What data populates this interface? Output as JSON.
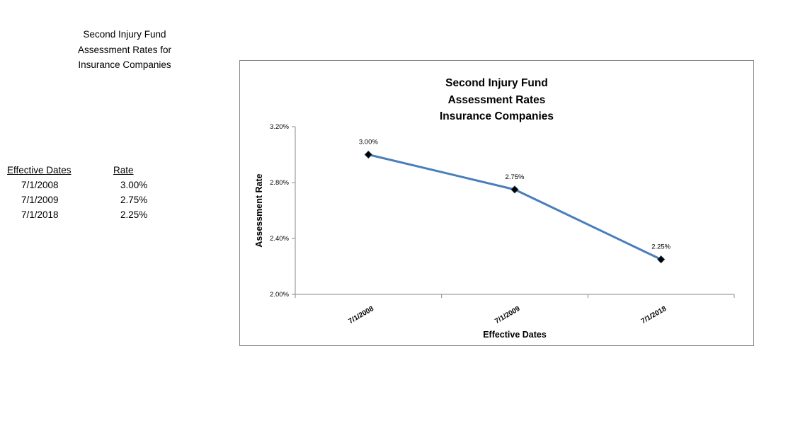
{
  "sheet": {
    "title_lines": [
      "Second Injury Fund",
      "Assessment Rates for",
      "Insurance Companies"
    ],
    "table": {
      "headers": [
        "Effective Dates",
        "Rate"
      ],
      "rows": [
        [
          "7/1/2008",
          "3.00%"
        ],
        [
          "7/1/2009",
          "2.75%"
        ],
        [
          "7/1/2018",
          "2.25%"
        ]
      ]
    }
  },
  "chart_data": {
    "type": "line",
    "title_lines": [
      "Second Injury Fund",
      "Assessment Rates",
      "Insurance Companies"
    ],
    "xlabel": "Effective Dates",
    "ylabel": "Assessment Rate",
    "categories": [
      "7/1/2008",
      "7/1/2009",
      "7/1/2018"
    ],
    "values": [
      3.0,
      2.75,
      2.25
    ],
    "data_labels": [
      "3.00%",
      "2.75%",
      "2.25%"
    ],
    "ylim": [
      2.0,
      3.2
    ],
    "yticks": [
      2.0,
      2.4,
      2.8,
      3.2
    ],
    "ytick_labels": [
      "2.00%",
      "2.40%",
      "2.80%",
      "3.20%"
    ],
    "grid": false,
    "legend": "none",
    "line_color": "#4a7ebb",
    "marker_color": "#000000"
  }
}
